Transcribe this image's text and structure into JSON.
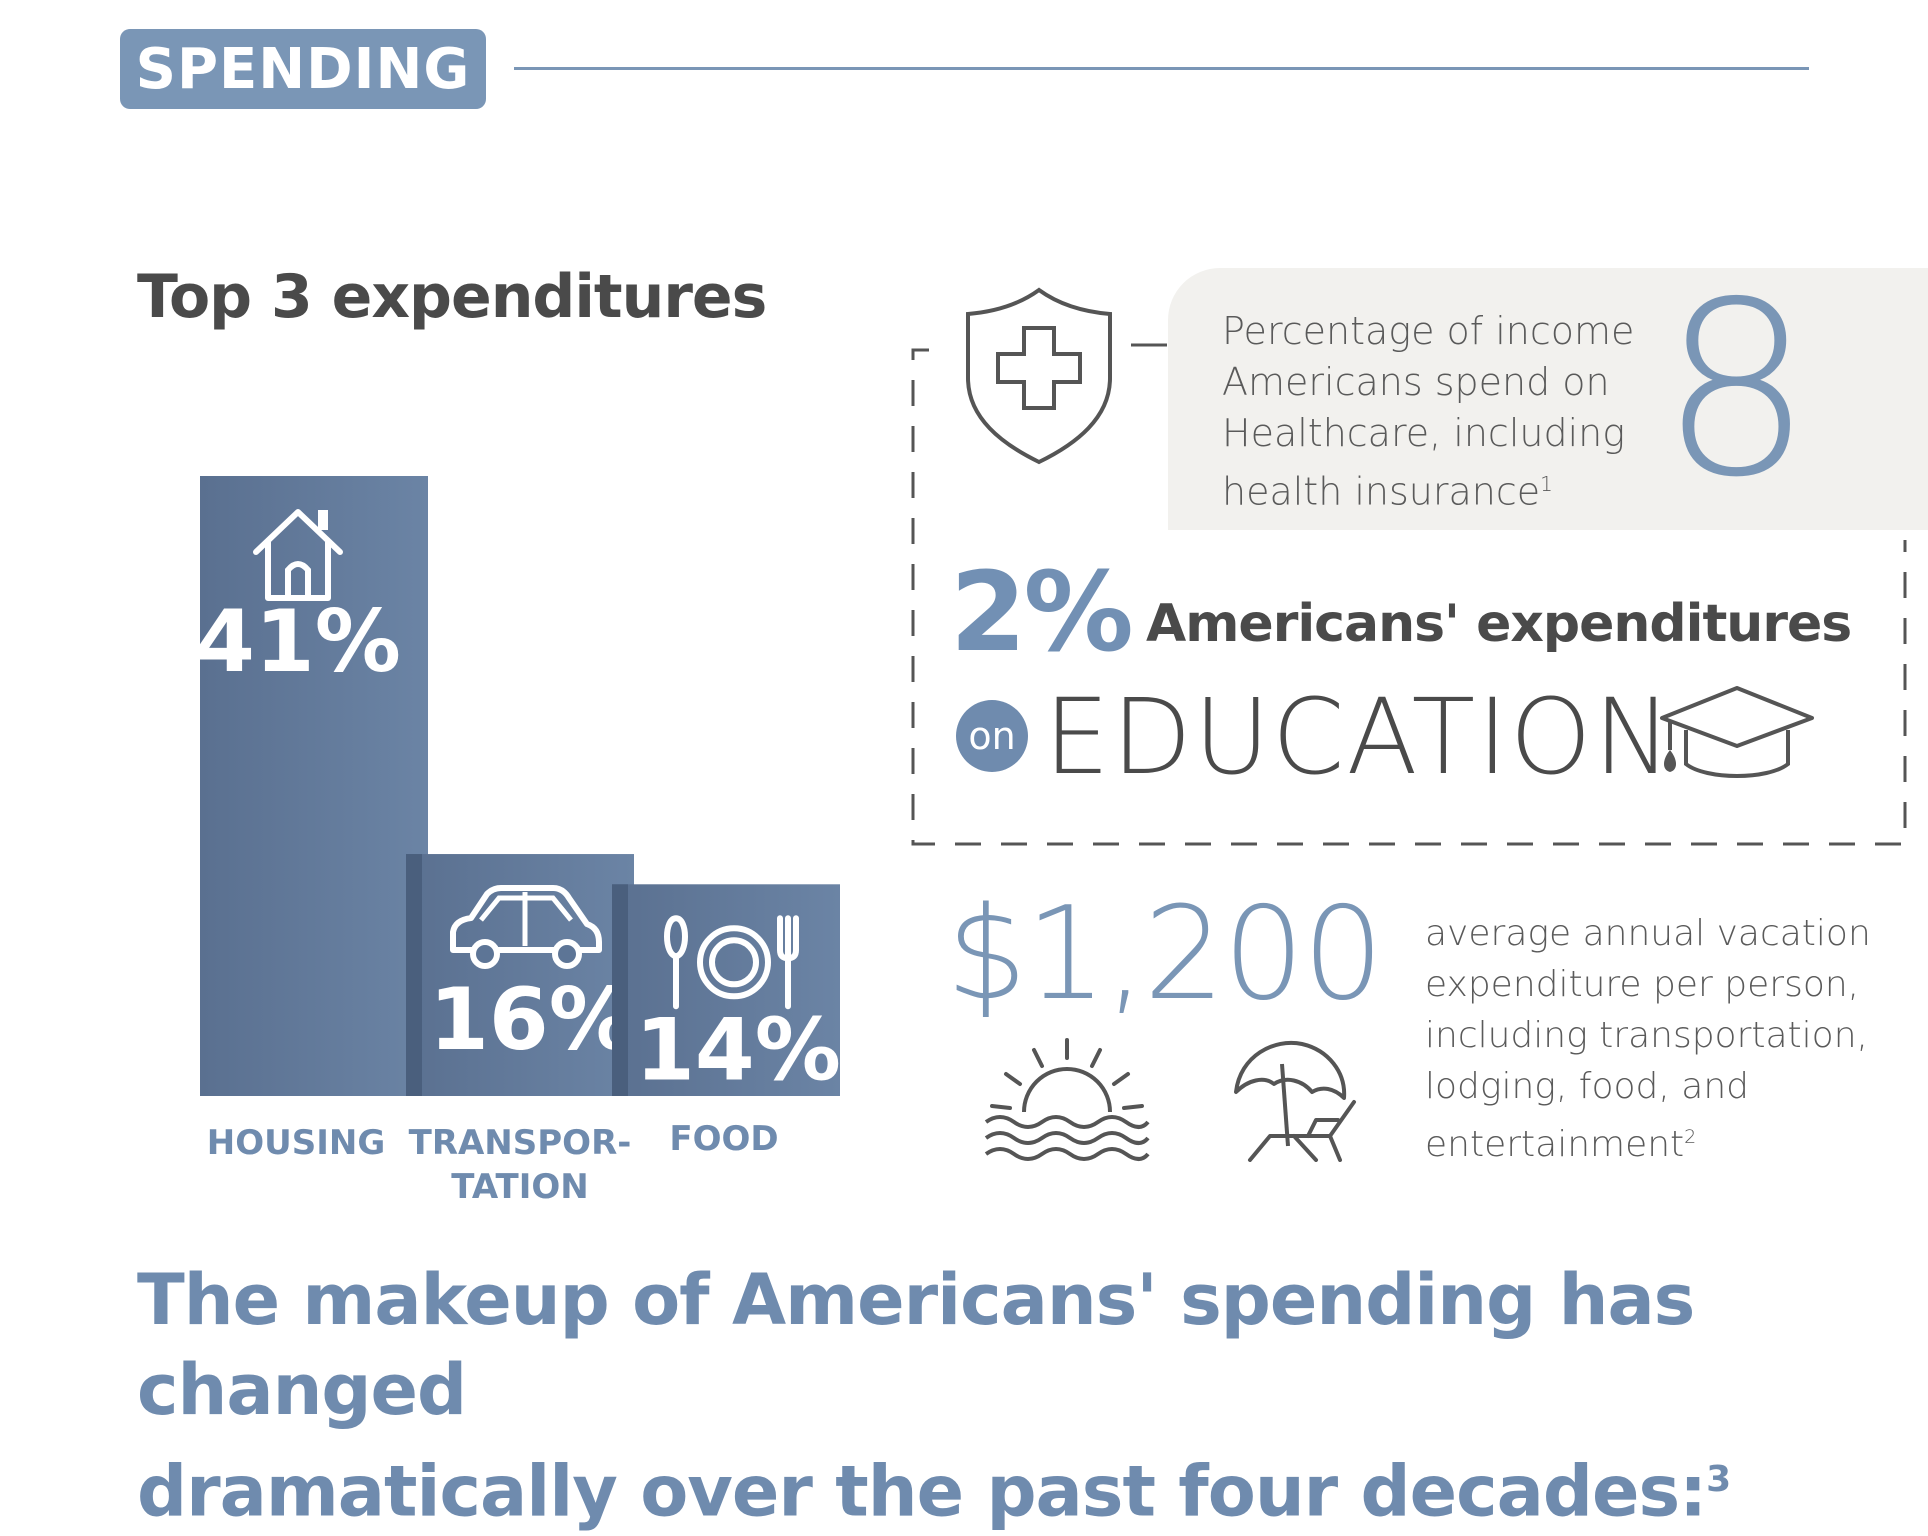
{
  "header": {
    "tag": "SPENDING"
  },
  "chart_data": {
    "type": "bar",
    "title": "Top 3 expenditures",
    "categories": [
      "HOUSING",
      "TRANSPOR-\nTATION",
      "FOOD"
    ],
    "category_lines": [
      [
        "HOUSING"
      ],
      [
        "TRANSPOR-",
        "TATION"
      ],
      [
        "FOOD"
      ]
    ],
    "values": [
      41,
      16,
      14
    ],
    "value_labels": [
      "41%",
      "16%",
      "14%"
    ],
    "icons": [
      "house-icon",
      "car-icon",
      "plate-cutlery-icon"
    ],
    "bar_color": "#6b84a5",
    "ylim": [
      0,
      41
    ]
  },
  "healthcare": {
    "lines": [
      "Percentage of income",
      "Americans spend on",
      "Healthcare, including",
      "health insurance"
    ],
    "footnote": "1",
    "number": "8",
    "icon": "shield-medical-icon"
  },
  "education": {
    "percent": "2%",
    "label": "Americans' expenditures",
    "on": "on",
    "word": "EDUCATION",
    "icon": "graduation-cap-icon"
  },
  "vacation": {
    "amount": "$1,200",
    "lines": [
      "average annual vacation",
      "expenditure per person,",
      "including transportation,",
      "lodging, food, and",
      "entertainment"
    ],
    "footnote": "2",
    "icons": [
      "sunset-icon",
      "beach-umbrella-icon"
    ]
  },
  "bottom": {
    "line1": "The makeup of Americans' spending has changed",
    "line2": "dramatically over the past four decades:",
    "footnote": "3"
  },
  "colors": {
    "accent": "#7a96b6",
    "dark_text": "#4a4a4a",
    "card_bg": "#f2f1ee"
  }
}
